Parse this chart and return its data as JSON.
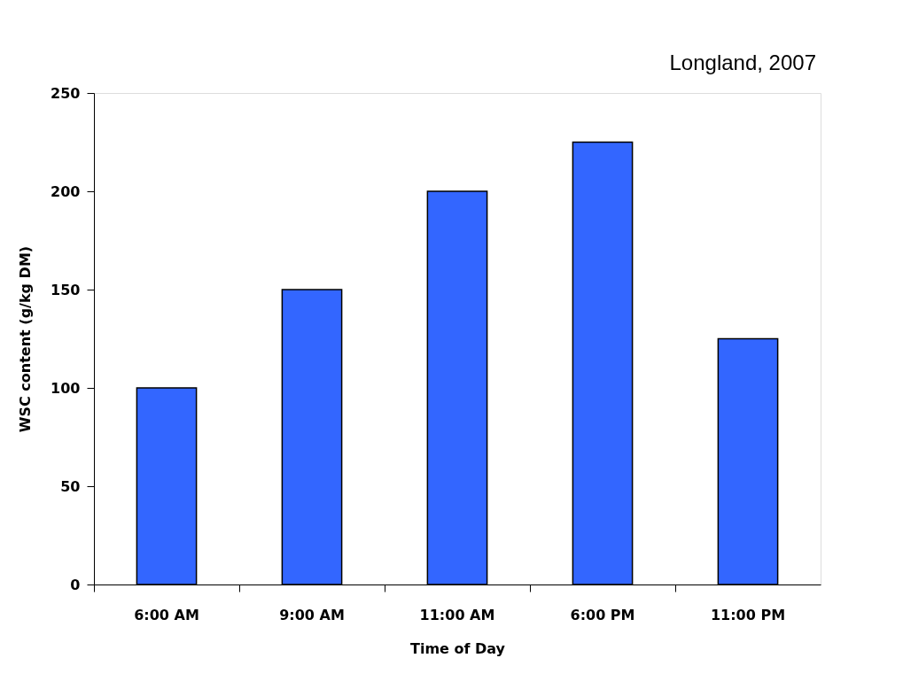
{
  "chart_data": {
    "type": "bar",
    "categories": [
      "6:00 AM",
      "9:00 AM",
      "11:00 AM",
      "6:00 PM",
      "11:00 PM"
    ],
    "values": [
      100,
      150,
      200,
      225,
      125
    ],
    "color": "#3366ff",
    "xlabel": "Time of Day",
    "ylabel": "WSC content (g/kg DM)",
    "ylim": [
      0,
      250
    ],
    "yticks": [
      0,
      50,
      100,
      150,
      200,
      250
    ],
    "annotations": [
      "Longland, 2007"
    ],
    "grid": false
  }
}
